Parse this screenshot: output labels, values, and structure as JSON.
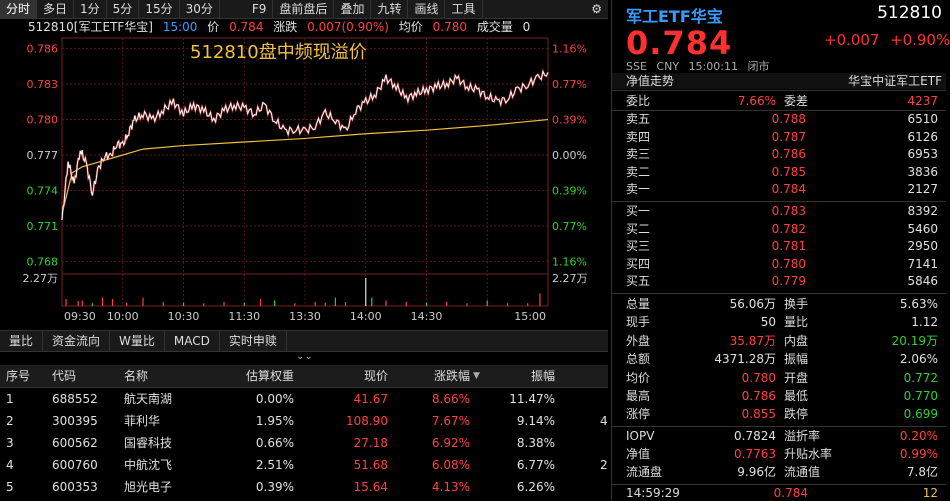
{
  "toolbar": {
    "items": [
      "分时",
      "多日",
      "1分",
      "5分",
      "15分",
      "30分",
      "",
      "F9",
      "盘前盘后",
      "叠加",
      "九转",
      "画线",
      "工具"
    ],
    "settings_icon": "gear-icon"
  },
  "chart_info": {
    "code_name": "512810[军工ETF华宝]",
    "time": "15:00",
    "price_label": "价",
    "price": "0.784",
    "change_label": "涨跌",
    "change": "0.007(0.90%)",
    "avg_label": "均价",
    "avg": "0.780",
    "volume_label": "成交量",
    "volume": "0"
  },
  "chart_data": {
    "type": "line",
    "title": "512810盘中频现溢价",
    "x_ticks": [
      "09:30",
      "10:00",
      "10:30",
      "11:30",
      "13:30",
      "14:00",
      "14:30",
      "15:00"
    ],
    "y_left_ticks": [
      "0.786",
      "0.783",
      "0.780",
      "0.777",
      "0.774",
      "0.771",
      "0.768"
    ],
    "y_right_ticks": [
      "1.16%",
      "0.77%",
      "0.39%",
      "0.00%",
      "0.39%",
      "0.77%",
      "1.16%"
    ],
    "ylim": [
      0.7671,
      0.7869
    ],
    "prev_close": 0.777,
    "volume_ticks": [
      "2.27万",
      "2.27万"
    ],
    "series": [
      {
        "name": "价",
        "color": "#ffffff"
      },
      {
        "name": "均价",
        "color": "#f0c040"
      }
    ],
    "price_points": [
      [
        0,
        0.7715
      ],
      [
        3,
        0.7765
      ],
      [
        6,
        0.7745
      ],
      [
        9,
        0.7775
      ],
      [
        12,
        0.7762
      ],
      [
        15,
        0.7738
      ],
      [
        18,
        0.7758
      ],
      [
        21,
        0.777
      ],
      [
        24,
        0.7768
      ],
      [
        27,
        0.778
      ],
      [
        30,
        0.7778
      ],
      [
        33,
        0.779
      ],
      [
        36,
        0.78
      ],
      [
        40,
        0.7805
      ],
      [
        45,
        0.78
      ],
      [
        50,
        0.7808
      ],
      [
        55,
        0.7815
      ],
      [
        60,
        0.7805
      ],
      [
        65,
        0.7812
      ],
      [
        70,
        0.7808
      ],
      [
        75,
        0.78
      ],
      [
        80,
        0.7808
      ],
      [
        85,
        0.7812
      ],
      [
        90,
        0.781
      ],
      [
        95,
        0.7805
      ],
      [
        100,
        0.7812
      ],
      [
        105,
        0.78
      ],
      [
        110,
        0.779
      ],
      [
        115,
        0.7792
      ],
      [
        120,
        0.779
      ],
      [
        125,
        0.7795
      ],
      [
        130,
        0.7805
      ],
      [
        135,
        0.78
      ],
      [
        140,
        0.779
      ],
      [
        145,
        0.7808
      ],
      [
        150,
        0.7815
      ],
      [
        155,
        0.7822
      ],
      [
        160,
        0.7835
      ],
      [
        165,
        0.7828
      ],
      [
        170,
        0.7818
      ],
      [
        175,
        0.7822
      ],
      [
        180,
        0.7825
      ],
      [
        185,
        0.7828
      ],
      [
        190,
        0.783
      ],
      [
        195,
        0.7835
      ],
      [
        200,
        0.7828
      ],
      [
        205,
        0.7825
      ],
      [
        210,
        0.782
      ],
      [
        215,
        0.7815
      ],
      [
        220,
        0.7818
      ],
      [
        225,
        0.7825
      ],
      [
        230,
        0.783
      ],
      [
        235,
        0.7835
      ],
      [
        240,
        0.784
      ]
    ],
    "avg_points": [
      [
        0,
        0.772
      ],
      [
        5,
        0.7755
      ],
      [
        10,
        0.776
      ],
      [
        20,
        0.7765
      ],
      [
        30,
        0.777
      ],
      [
        40,
        0.7775
      ],
      [
        60,
        0.7778
      ],
      [
        90,
        0.7781
      ],
      [
        120,
        0.7784
      ],
      [
        150,
        0.7788
      ],
      [
        180,
        0.7791
      ],
      [
        210,
        0.7795
      ],
      [
        240,
        0.78
      ]
    ],
    "volume_points": [
      [
        2,
        0.25
      ],
      [
        8,
        0.18
      ],
      [
        10,
        0.2
      ],
      [
        15,
        0.1
      ],
      [
        20,
        0.3
      ],
      [
        25,
        0.25
      ],
      [
        32,
        0.12
      ],
      [
        40,
        0.3
      ],
      [
        50,
        0.15
      ],
      [
        60,
        0.12
      ],
      [
        70,
        0.1
      ],
      [
        80,
        0.15
      ],
      [
        90,
        0.12
      ],
      [
        98,
        0.25
      ],
      [
        105,
        0.2
      ],
      [
        115,
        0.1
      ],
      [
        125,
        0.15
      ],
      [
        130,
        0.12
      ],
      [
        135,
        0.3
      ],
      [
        140,
        0.14
      ],
      [
        150,
        1.0
      ],
      [
        153,
        0.3
      ],
      [
        160,
        0.2
      ],
      [
        170,
        0.15
      ],
      [
        180,
        0.12
      ],
      [
        190,
        0.15
      ],
      [
        200,
        0.1
      ],
      [
        210,
        0.2
      ],
      [
        220,
        0.1
      ],
      [
        230,
        0.1
      ],
      [
        236,
        0.45
      ]
    ]
  },
  "subtabs": [
    "量比",
    "资金流向",
    "W量比",
    "MACD",
    "实时申赎"
  ],
  "collapse_icon": "double-chevron-down-icon",
  "table": {
    "headers": [
      "序号",
      "代码",
      "名称",
      "估算权重",
      "现价",
      "涨跌幅",
      "振幅"
    ],
    "sort_icon": "sort-desc-icon",
    "rows": [
      {
        "idx": "1",
        "code": "688552",
        "name": "航天南湖",
        "weight": "0.00%",
        "price": "41.67",
        "chg": "8.66%",
        "amp": "11.47%",
        "extra": ""
      },
      {
        "idx": "2",
        "code": "300395",
        "name": "菲利华",
        "weight": "1.95%",
        "price": "108.90",
        "chg": "7.67%",
        "amp": "9.14%",
        "extra": "4"
      },
      {
        "idx": "3",
        "code": "600562",
        "name": "国睿科技",
        "weight": "0.66%",
        "price": "27.18",
        "chg": "6.92%",
        "amp": "8.38%",
        "extra": ""
      },
      {
        "idx": "4",
        "code": "600760",
        "name": "中航沈飞",
        "weight": "2.51%",
        "price": "51.68",
        "chg": "6.08%",
        "amp": "6.77%",
        "extra": "2"
      },
      {
        "idx": "5",
        "code": "600353",
        "name": "旭光电子",
        "weight": "0.39%",
        "price": "15.64",
        "chg": "4.13%",
        "amp": "6.26%",
        "extra": ""
      }
    ]
  },
  "quote": {
    "name": "军工ETF华宝",
    "code": "512810",
    "price": "0.784",
    "change": "+0.007",
    "change_pct": "+0.90%",
    "market": "SSE",
    "currency": "CNY",
    "time": "15:00:11",
    "status": "闭市",
    "nav_trend_label": "净值走势",
    "index_name": "华宝中证军工ETF",
    "weibi_label": "委比",
    "weibi": "7.66%",
    "weicha_label": "委差",
    "weicha": "4237",
    "asks": [
      {
        "label": "卖五",
        "price": "0.788",
        "vol": "6510"
      },
      {
        "label": "卖四",
        "price": "0.787",
        "vol": "6126"
      },
      {
        "label": "卖三",
        "price": "0.786",
        "vol": "6953"
      },
      {
        "label": "卖二",
        "price": "0.785",
        "vol": "3836"
      },
      {
        "label": "卖一",
        "price": "0.784",
        "vol": "2127"
      }
    ],
    "bids": [
      {
        "label": "买一",
        "price": "0.783",
        "vol": "8392"
      },
      {
        "label": "买二",
        "price": "0.782",
        "vol": "5460"
      },
      {
        "label": "买三",
        "price": "0.781",
        "vol": "2950"
      },
      {
        "label": "买四",
        "price": "0.780",
        "vol": "7141"
      },
      {
        "label": "买五",
        "price": "0.779",
        "vol": "5846"
      }
    ],
    "stats": [
      {
        "l1": "总量",
        "v1": "56.06万",
        "c1": "white",
        "l2": "换手",
        "v2": "5.63%",
        "c2": "white"
      },
      {
        "l1": "现手",
        "v1": "50",
        "c1": "white",
        "l2": "量比",
        "v2": "1.12",
        "c2": "white"
      },
      {
        "l1": "外盘",
        "v1": "35.87万",
        "c1": "red",
        "l2": "内盘",
        "v2": "20.19万",
        "c2": "green"
      },
      {
        "l1": "总额",
        "v1": "4371.28万",
        "c1": "white",
        "l2": "振幅",
        "v2": "2.06%",
        "c2": "white"
      },
      {
        "l1": "均价",
        "v1": "0.780",
        "c1": "red",
        "l2": "开盘",
        "v2": "0.772",
        "c2": "green"
      },
      {
        "l1": "最高",
        "v1": "0.786",
        "c1": "red",
        "l2": "最低",
        "v2": "0.770",
        "c2": "green"
      },
      {
        "l1": "涨停",
        "v1": "0.855",
        "c1": "red",
        "l2": "跌停",
        "v2": "0.699",
        "c2": "green"
      }
    ],
    "stats2": [
      {
        "l1": "IOPV",
        "v1": "0.7824",
        "c1": "white",
        "l2": "溢折率",
        "v2": "0.20%",
        "c2": "red"
      },
      {
        "l1": "净值",
        "v1": "0.7763",
        "c1": "red",
        "l2": "升贴水率",
        "v2": "0.99%",
        "c2": "red"
      },
      {
        "l1": "流通盘",
        "v1": "9.96亿",
        "c1": "white",
        "l2": "流通值",
        "v2": "7.8亿",
        "c2": "white"
      }
    ],
    "tick": {
      "time": "14:59:29",
      "price": "0.784",
      "vol": "12"
    }
  }
}
